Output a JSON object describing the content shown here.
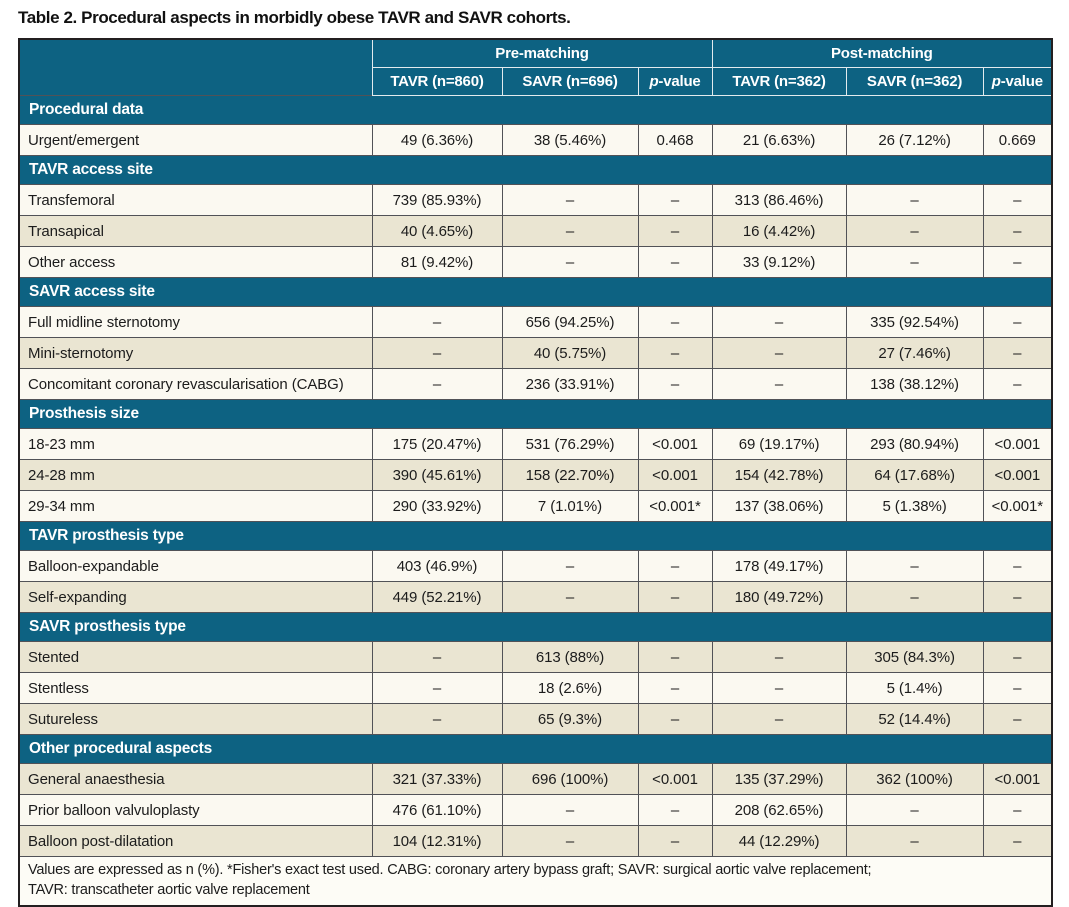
{
  "title": "Table 2. Procedural aspects in morbidly obese TAVR and SAVR cohorts.",
  "colors": {
    "header_teal": "#0d6282",
    "row_light": "#fbf9f1",
    "row_beige": "#eae5d2",
    "outer_border": "#231f20",
    "cell_border": "#515257",
    "header_text": "#ffffff"
  },
  "table": {
    "group_headers": [
      {
        "label": "Pre-matching",
        "span": 3
      },
      {
        "label": "Post-matching",
        "span": 3
      }
    ],
    "column_headers": [
      {
        "label": "TAVR (n=860)"
      },
      {
        "label": "SAVR (n=696)"
      },
      {
        "label": "p-value",
        "italic_p": true
      },
      {
        "label": "TAVR (n=362)"
      },
      {
        "label": "SAVR (n=362)"
      },
      {
        "label": "p-value",
        "italic_p": true
      }
    ],
    "sections": [
      {
        "header": "Procedural data",
        "rows": [
          {
            "label": "Urgent/emergent",
            "values": [
              "49 (6.36%)",
              "38 (5.46%)",
              "0.468",
              "21 (6.63%)",
              "26 (7.12%)",
              "0.669"
            ]
          }
        ]
      },
      {
        "header": "TAVR access site",
        "rows": [
          {
            "label": "Transfemoral",
            "values": [
              "739 (85.93%)",
              "–",
              "–",
              "313 (86.46%)",
              "–",
              "–"
            ]
          },
          {
            "label": "Transapical",
            "values": [
              "40 (4.65%)",
              "–",
              "–",
              "16 (4.42%)",
              "–",
              "–"
            ]
          },
          {
            "label": "Other access",
            "values": [
              "81 (9.42%)",
              "–",
              "–",
              "33 (9.12%)",
              "–",
              "–"
            ]
          }
        ]
      },
      {
        "header": "SAVR access site",
        "rows": [
          {
            "label": "Full midline sternotomy",
            "values": [
              "–",
              "656 (94.25%)",
              "–",
              "–",
              "335 (92.54%)",
              "–"
            ]
          },
          {
            "label": "Mini-sternotomy",
            "values": [
              "–",
              "40 (5.75%)",
              "–",
              "–",
              "27 (7.46%)",
              "–"
            ]
          },
          {
            "label": "Concomitant coronary revascularisation (CABG)",
            "values": [
              "–",
              "236 (33.91%)",
              "–",
              "–",
              "138 (38.12%)",
              "–"
            ]
          }
        ]
      },
      {
        "header": "Prosthesis size",
        "rows": [
          {
            "label": "18-23 mm",
            "values": [
              "175 (20.47%)",
              "531 (76.29%)",
              "<0.001",
              "69 (19.17%)",
              "293 (80.94%)",
              "<0.001"
            ]
          },
          {
            "label": "24-28 mm",
            "values": [
              "390 (45.61%)",
              "158 (22.70%)",
              "<0.001",
              "154 (42.78%)",
              "64 (17.68%)",
              "<0.001"
            ]
          },
          {
            "label": "29-34 mm",
            "values": [
              "290 (33.92%)",
              "7 (1.01%)",
              "<0.001*",
              "137 (38.06%)",
              "5 (1.38%)",
              "<0.001*"
            ]
          }
        ]
      },
      {
        "header": "TAVR prosthesis type",
        "rows": [
          {
            "label": "Balloon-expandable",
            "values": [
              "403 (46.9%)",
              "–",
              "–",
              "178 (49.17%)",
              "–",
              "–"
            ]
          },
          {
            "label": "Self-expanding",
            "values": [
              "449 (52.21%)",
              "–",
              "–",
              "180 (49.72%)",
              "–",
              "–"
            ]
          }
        ]
      },
      {
        "header": "SAVR prosthesis type",
        "rows": [
          {
            "label": "Stented",
            "values": [
              "–",
              "613 (88%)",
              "–",
              "–",
              "305 (84.3%)",
              "–"
            ]
          },
          {
            "label": "Stentless",
            "values": [
              "–",
              "18 (2.6%)",
              "–",
              "–",
              "5 (1.4%)",
              "–"
            ]
          },
          {
            "label": "Sutureless",
            "values": [
              "–",
              "65 (9.3%)",
              "–",
              "–",
              "52 (14.4%)",
              "–"
            ]
          }
        ]
      },
      {
        "header": "Other procedural aspects",
        "rows": [
          {
            "label": "General anaesthesia",
            "values": [
              "321 (37.33%)",
              "696 (100%)",
              "<0.001",
              "135 (37.29%)",
              "362 (100%)",
              "<0.001"
            ]
          },
          {
            "label": "Prior balloon valvuloplasty",
            "values": [
              "476 (61.10%)",
              "–",
              "–",
              "208 (62.65%)",
              "–",
              "–"
            ]
          },
          {
            "label": "Balloon post-dilatation",
            "values": [
              "104 (12.31%)",
              "–",
              "–",
              "44 (12.29%)",
              "–",
              "–"
            ]
          }
        ]
      }
    ],
    "footnote_lines": [
      "Values are expressed as n (%). *Fisher's exact test used. CABG: coronary artery bypass graft; SAVR: surgical aortic valve replacement;",
      "TAVR: transcatheter aortic valve replacement"
    ]
  }
}
